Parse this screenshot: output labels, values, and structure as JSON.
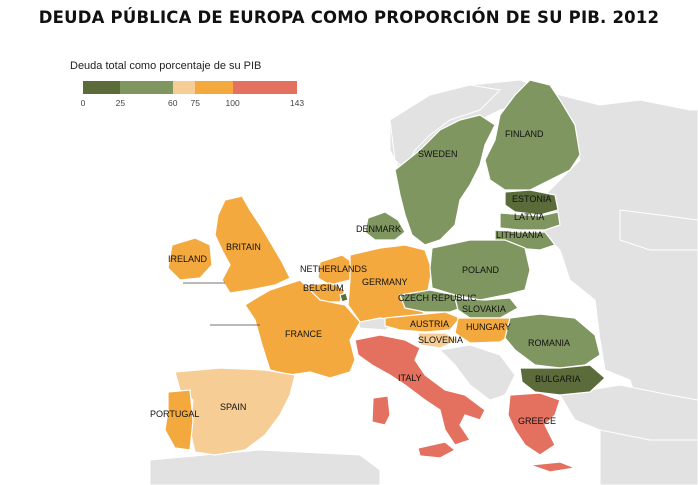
{
  "title": "DEUDA PÚBLICA DE EUROPA COMO PROPORCIÓN DE SU PIB. 2012",
  "legend": {
    "title": "Deuda total como porcentaje de su PIB",
    "ticks": [
      "0",
      "25",
      "60",
      "75",
      "100",
      "143"
    ],
    "bins": [
      {
        "from": 0,
        "to": 25,
        "color": "#5c6b3a"
      },
      {
        "from": 25,
        "to": 60,
        "color": "#7f9660"
      },
      {
        "from": 60,
        "to": 75,
        "color": "#f6cd94"
      },
      {
        "from": 75,
        "to": 100,
        "color": "#f4a93f"
      },
      {
        "from": 100,
        "to": 143,
        "color": "#e4705f"
      }
    ]
  },
  "colors": {
    "sea": "#ffffff",
    "non_eu_land": "#e2e2e2",
    "border": "#ffffff",
    "very_low": "#5c6b3a",
    "low": "#7f9660",
    "mid": "#f6cd94",
    "high": "#f4a93f",
    "very_high": "#e4705f"
  },
  "countries": {
    "finland": "FINLAND",
    "sweden": "SWEDEN",
    "estonia": "ESTONIA",
    "latvia": "LATVIA",
    "lithuania": "LITHUANIA",
    "denmark": "DENMARK",
    "britain": "BRITAIN",
    "ireland": "IRELAND",
    "netherlands": "NETHERLANDS",
    "belgium": "BELGIUM",
    "germany": "GERMANY",
    "poland": "POLAND",
    "czech": "CZECH REPUBLIC",
    "slovakia": "SLOVAKIA",
    "austria": "AUSTRIA",
    "hungary": "HUNGARY",
    "slovenia": "SLOVENIA",
    "france": "FRANCE",
    "romania": "ROMANIA",
    "bulgaria": "BULGARIA",
    "italy": "ITALY",
    "spain": "SPAIN",
    "portugal": "PORTUGAL",
    "greece": "GREECE"
  }
}
